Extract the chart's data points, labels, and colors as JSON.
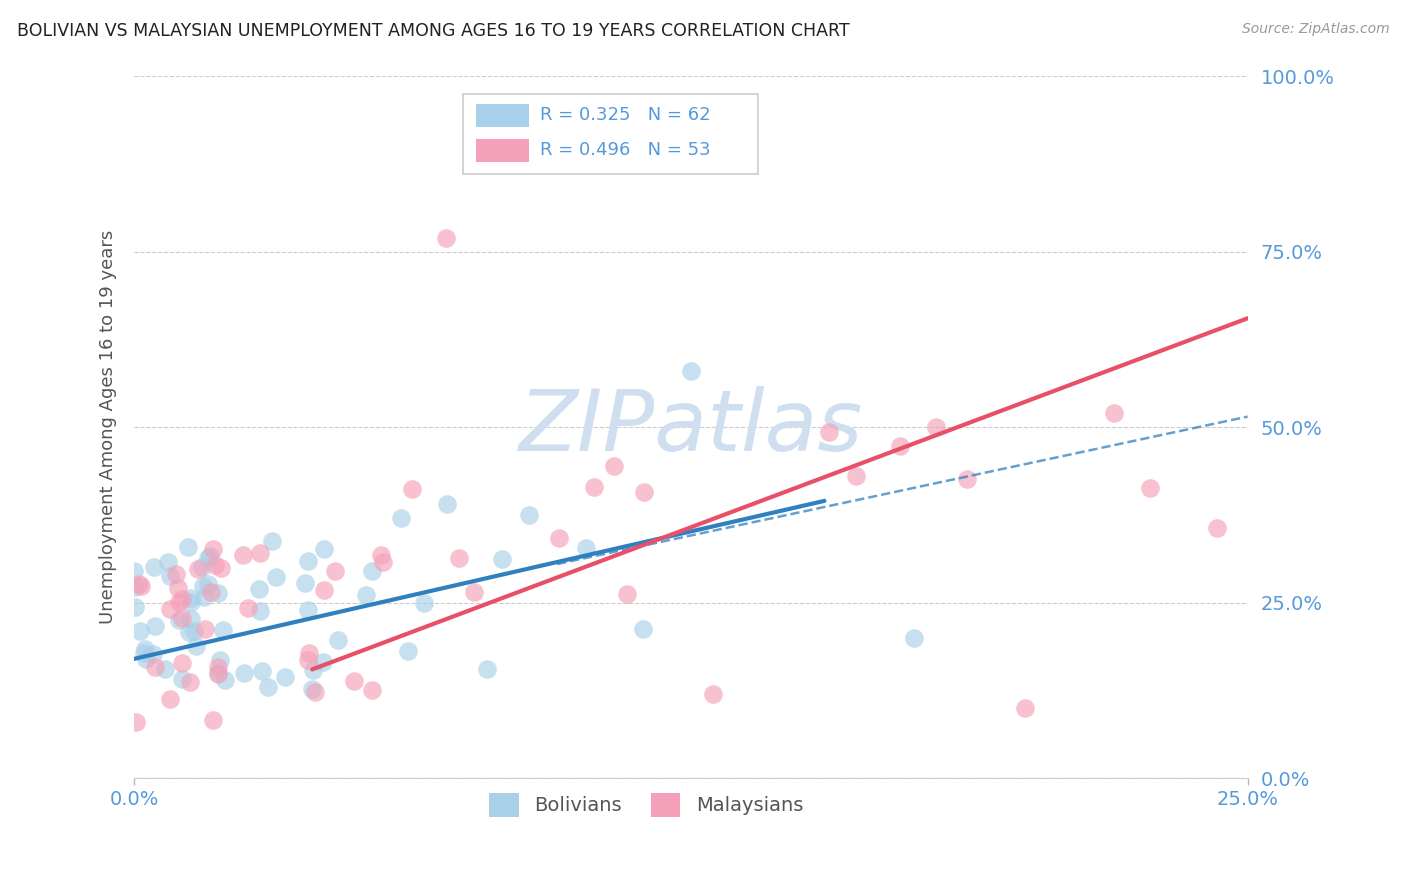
{
  "title": "BOLIVIAN VS MALAYSIAN UNEMPLOYMENT AMONG AGES 16 TO 19 YEARS CORRELATION CHART",
  "source": "Source: ZipAtlas.com",
  "ylabel_label": "Unemployment Among Ages 16 to 19 years",
  "legend_bolivians": "Bolivians",
  "legend_malaysians": "Malaysians",
  "R_bolivians": 0.325,
  "N_bolivians": 62,
  "R_malaysians": 0.496,
  "N_malaysians": 53,
  "color_bolivians": "#a8d0e8",
  "color_malaysians": "#f4a0b8",
  "line_color_bolivians": "#3080c0",
  "line_color_malaysians": "#e8506a",
  "background_color": "#ffffff",
  "title_color": "#222222",
  "axis_label_color": "#5599dd",
  "watermark_color": "#d0dff0",
  "xlim": [
    0,
    0.25
  ],
  "ylim": [
    0,
    1.0
  ],
  "bol_line_x": [
    0.0,
    0.155
  ],
  "bol_line_y": [
    0.17,
    0.395
  ],
  "mal_line_x": [
    0.04,
    0.25
  ],
  "mal_line_y": [
    0.155,
    0.655
  ],
  "dash_line_x": [
    0.095,
    0.25
  ],
  "dash_line_y": [
    0.305,
    0.515
  ],
  "xticks": [
    0.0,
    0.25
  ],
  "yticks": [
    0.0,
    0.25,
    0.5,
    0.75,
    1.0
  ]
}
